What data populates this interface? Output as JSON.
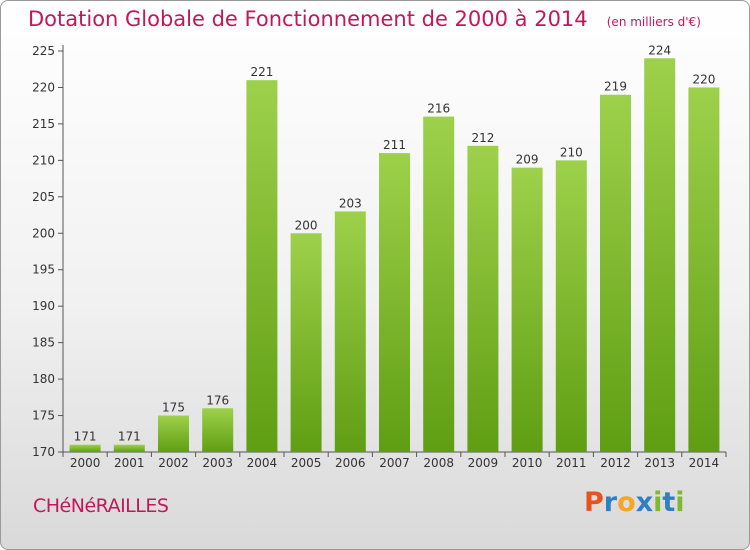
{
  "chart_data": {
    "type": "bar",
    "title": "Dotation Globale de Fonctionnement de 2000 à 2014",
    "subtitle": "(en milliers d'€)",
    "categories": [
      "2000",
      "2001",
      "2002",
      "2003",
      "2004",
      "2005",
      "2006",
      "2007",
      "2008",
      "2009",
      "2010",
      "2011",
      "2012",
      "2013",
      "2014"
    ],
    "values": [
      171,
      171,
      175,
      176,
      221,
      200,
      203,
      211,
      216,
      212,
      209,
      210,
      219,
      224,
      220
    ],
    "data_labels": [
      "171",
      "171",
      "175",
      "176",
      "221",
      "200",
      "203",
      "211",
      "216",
      "212",
      "209",
      "210",
      "219",
      "224",
      "220"
    ],
    "ylim": [
      170,
      225
    ],
    "yticks": [
      170,
      175,
      180,
      185,
      190,
      195,
      200,
      205,
      210,
      215,
      220,
      225
    ],
    "ytick_labels": [
      "170",
      "175",
      "180",
      "185",
      "190",
      "195",
      "200",
      "205",
      "210",
      "215",
      "220",
      "225"
    ],
    "xlabel": "",
    "ylabel": "",
    "grid": false,
    "bar_color_top": "#9ed14b",
    "bar_color_bottom": "#5f9e13"
  },
  "footer": {
    "commune": "CHéNéRAILLES",
    "logo_letters": [
      "P",
      "r",
      "o",
      "x",
      "i",
      "t",
      "i"
    ],
    "logo_colors": [
      "#e8531c",
      "#2f7fc1",
      "#f4a52a",
      "#2f7fc1",
      "#7fb92e",
      "#2f7fc1",
      "#7fb92e"
    ]
  },
  "colors": {
    "accent": "#c2185b",
    "axis": "#555555"
  }
}
